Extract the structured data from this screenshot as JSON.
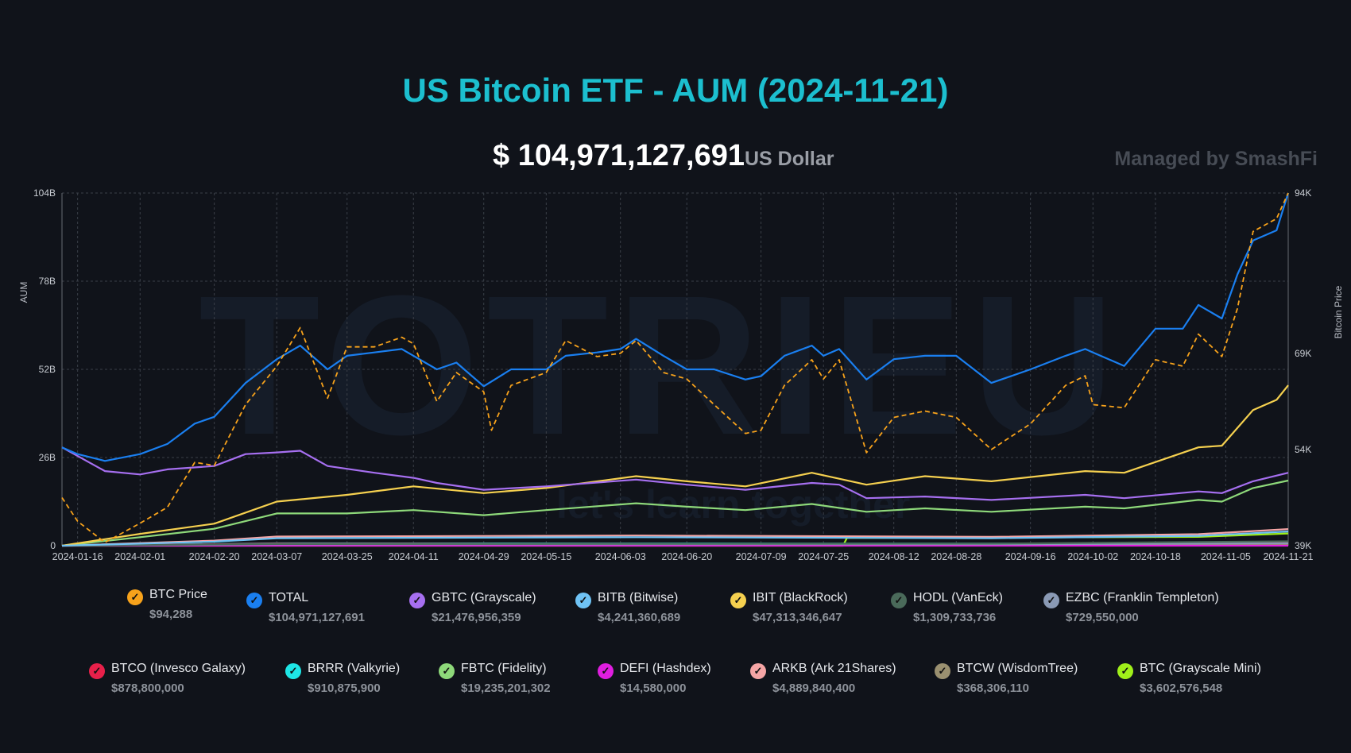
{
  "header": {
    "title": "US Bitcoin ETF - AUM (2024-11-21)",
    "total_value": "$ 104,971,127,691",
    "total_unit": "US Dollar",
    "managed_by": "Managed by SmashFi"
  },
  "watermark": {
    "text": "TOTRIEU",
    "tagline": "let's learn together"
  },
  "chart_data": {
    "type": "line",
    "title": "US Bitcoin ETF - AUM (2024-11-21)",
    "ylabel": "AUM",
    "y2label": "Bitcoin Price",
    "ylim": [
      0,
      104
    ],
    "y_unit": "B",
    "y2lim": [
      39,
      94
    ],
    "y2_unit": "K",
    "xlim": [
      "2024-01-12",
      "2024-11-21"
    ],
    "grid": true,
    "legend_placement": "bottom",
    "y_ticks": [
      "0",
      "26B",
      "52B",
      "78B",
      "104B"
    ],
    "y_tick_values": [
      0,
      26,
      52,
      78,
      104
    ],
    "y2_ticks": [
      "39K",
      "54K",
      "69K",
      "94K"
    ],
    "y2_tick_values": [
      39,
      54,
      69,
      94
    ],
    "x_ticks": [
      "2024-01-16",
      "2024-02-01",
      "2024-02-20",
      "2024-03-07",
      "2024-03-25",
      "2024-04-11",
      "2024-04-29",
      "2024-05-15",
      "2024-06-03",
      "2024-06-20",
      "2024-07-09",
      "2024-07-25",
      "2024-08-12",
      "2024-08-28",
      "2024-09-16",
      "2024-10-02",
      "2024-10-18",
      "2024-11-05",
      "2024-11-21"
    ],
    "series": [
      {
        "name": "BTC Price",
        "value": "$94,288",
        "color": "#f7a21b",
        "axis": "right",
        "dashed": true,
        "x": [
          "2024-01-12",
          "2024-01-16",
          "2024-01-23",
          "2024-02-01",
          "2024-02-08",
          "2024-02-15",
          "2024-02-20",
          "2024-02-28",
          "2024-03-07",
          "2024-03-13",
          "2024-03-20",
          "2024-03-25",
          "2024-04-01",
          "2024-04-08",
          "2024-04-11",
          "2024-04-17",
          "2024-04-22",
          "2024-04-29",
          "2024-05-01",
          "2024-05-06",
          "2024-05-15",
          "2024-05-20",
          "2024-05-28",
          "2024-06-03",
          "2024-06-07",
          "2024-06-14",
          "2024-06-20",
          "2024-06-27",
          "2024-07-05",
          "2024-07-09",
          "2024-07-15",
          "2024-07-22",
          "2024-07-25",
          "2024-07-29",
          "2024-08-05",
          "2024-08-12",
          "2024-08-20",
          "2024-08-28",
          "2024-09-06",
          "2024-09-16",
          "2024-09-25",
          "2024-09-30",
          "2024-10-02",
          "2024-10-10",
          "2024-10-18",
          "2024-10-25",
          "2024-10-29",
          "2024-11-04",
          "2024-11-08",
          "2024-11-12",
          "2024-11-18",
          "2024-11-21"
        ],
        "values": [
          46.5,
          42.8,
          39.5,
          42.5,
          45,
          52,
          51.5,
          61,
          67,
          73,
          62,
          70,
          70,
          71.5,
          70.5,
          61.5,
          66,
          63,
          57,
          64,
          66,
          71,
          68.5,
          69,
          71,
          66,
          65,
          61,
          56.5,
          57,
          64,
          68,
          65,
          68,
          53.5,
          59,
          60,
          59,
          54,
          58,
          64,
          65.5,
          61,
          60.5,
          68,
          67,
          72,
          68.5,
          76,
          88,
          90,
          94.3
        ]
      },
      {
        "name": "TOTAL",
        "value": "$104,971,127,691",
        "color": "#1a7ff0",
        "axis": "left",
        "x": [
          "2024-01-12",
          "2024-01-16",
          "2024-01-23",
          "2024-02-01",
          "2024-02-08",
          "2024-02-15",
          "2024-02-20",
          "2024-02-28",
          "2024-03-07",
          "2024-03-13",
          "2024-03-20",
          "2024-03-25",
          "2024-04-01",
          "2024-04-08",
          "2024-04-11",
          "2024-04-17",
          "2024-04-22",
          "2024-04-29",
          "2024-05-06",
          "2024-05-15",
          "2024-05-20",
          "2024-05-28",
          "2024-06-03",
          "2024-06-07",
          "2024-06-14",
          "2024-06-20",
          "2024-06-27",
          "2024-07-05",
          "2024-07-09",
          "2024-07-15",
          "2024-07-22",
          "2024-07-25",
          "2024-07-29",
          "2024-08-05",
          "2024-08-12",
          "2024-08-20",
          "2024-08-28",
          "2024-09-06",
          "2024-09-16",
          "2024-09-25",
          "2024-09-30",
          "2024-10-02",
          "2024-10-10",
          "2024-10-18",
          "2024-10-25",
          "2024-10-29",
          "2024-11-04",
          "2024-11-08",
          "2024-11-12",
          "2024-11-18",
          "2024-11-21"
        ],
        "values": [
          29,
          27,
          25,
          27,
          30,
          36,
          38,
          48,
          55,
          59,
          52,
          56,
          57,
          58,
          56,
          52,
          54,
          47,
          52,
          52,
          56,
          57,
          58,
          61,
          56,
          52,
          52,
          49,
          50,
          56,
          59,
          56,
          58,
          49,
          55,
          56,
          56,
          48,
          52,
          56,
          58,
          57,
          53,
          64,
          64,
          71,
          67,
          80,
          90,
          93,
          105
        ]
      },
      {
        "name": "GBTC (Grayscale)",
        "value": "$21,476,956,359",
        "color": "#a66ff0",
        "axis": "left",
        "x": [
          "2024-01-12",
          "2024-01-23",
          "2024-02-01",
          "2024-02-08",
          "2024-02-20",
          "2024-02-28",
          "2024-03-07",
          "2024-03-13",
          "2024-03-20",
          "2024-04-01",
          "2024-04-11",
          "2024-04-17",
          "2024-04-29",
          "2024-05-15",
          "2024-06-07",
          "2024-06-20",
          "2024-07-05",
          "2024-07-22",
          "2024-07-29",
          "2024-08-05",
          "2024-08-20",
          "2024-09-06",
          "2024-09-30",
          "2024-10-10",
          "2024-10-29",
          "2024-11-04",
          "2024-11-12",
          "2024-11-21"
        ],
        "values": [
          29,
          22,
          21,
          22.5,
          23.5,
          27,
          27.5,
          28,
          23.5,
          21.5,
          20,
          18.5,
          16.5,
          17.5,
          19.5,
          18,
          16.5,
          18.5,
          18,
          14,
          14.5,
          13.5,
          15,
          14,
          16,
          15.5,
          19,
          21.5
        ]
      },
      {
        "name": "BITB (Bitwise)",
        "value": "$4,241,360,689",
        "color": "#6fc3f5",
        "axis": "left",
        "x": [
          "2024-01-12",
          "2024-02-20",
          "2024-03-07",
          "2024-06-07",
          "2024-09-06",
          "2024-10-29",
          "2024-11-21"
        ],
        "values": [
          0,
          1.2,
          2.2,
          2.5,
          2.2,
          2.9,
          4.2
        ]
      },
      {
        "name": "IBIT (BlackRock)",
        "value": "$47,313,346,647",
        "color": "#f5d04f",
        "axis": "left",
        "x": [
          "2024-01-12",
          "2024-02-01",
          "2024-02-20",
          "2024-03-07",
          "2024-03-25",
          "2024-04-11",
          "2024-04-29",
          "2024-05-15",
          "2024-06-07",
          "2024-06-20",
          "2024-07-05",
          "2024-07-22",
          "2024-08-05",
          "2024-08-20",
          "2024-09-06",
          "2024-09-30",
          "2024-10-10",
          "2024-10-29",
          "2024-11-04",
          "2024-11-12",
          "2024-11-18",
          "2024-11-21"
        ],
        "values": [
          0,
          3.5,
          6.5,
          13,
          15,
          17.5,
          15.5,
          17,
          20.5,
          19,
          17.5,
          21.5,
          18,
          20.5,
          19,
          22,
          21.5,
          29,
          29.5,
          40,
          43,
          47.3
        ]
      },
      {
        "name": "HODL (VanEck)",
        "value": "$1,309,733,736",
        "color": "#4a6a5a",
        "axis": "left",
        "x": [
          "2024-01-12",
          "2024-03-07",
          "2024-09-06",
          "2024-11-21"
        ],
        "values": [
          0,
          0.5,
          0.6,
          1.3
        ]
      },
      {
        "name": "EZBC (Franklin Templeton)",
        "value": "$729,550,000",
        "color": "#8a9ab5",
        "axis": "left",
        "x": [
          "2024-01-12",
          "2024-03-07",
          "2024-09-06",
          "2024-11-21"
        ],
        "values": [
          0,
          0.4,
          0.4,
          0.73
        ]
      },
      {
        "name": "BTCO (Invesco Galaxy)",
        "value": "$878,800,000",
        "color": "#e8204a",
        "axis": "left",
        "x": [
          "2024-01-12",
          "2024-03-07",
          "2024-09-06",
          "2024-11-21"
        ],
        "values": [
          0,
          0.6,
          0.5,
          0.88
        ]
      },
      {
        "name": "BRRR (Valkyrie)",
        "value": "$910,875,900",
        "color": "#1ee6e6",
        "axis": "left",
        "x": [
          "2024-01-12",
          "2024-03-07",
          "2024-09-06",
          "2024-11-21"
        ],
        "values": [
          0,
          0.7,
          0.6,
          0.91
        ]
      },
      {
        "name": "FBTC (Fidelity)",
        "value": "$19,235,201,302",
        "color": "#8ed97a",
        "axis": "left",
        "x": [
          "2024-01-12",
          "2024-02-01",
          "2024-02-20",
          "2024-03-07",
          "2024-03-25",
          "2024-04-11",
          "2024-04-29",
          "2024-05-15",
          "2024-06-07",
          "2024-06-20",
          "2024-07-05",
          "2024-07-22",
          "2024-08-05",
          "2024-08-20",
          "2024-09-06",
          "2024-09-30",
          "2024-10-10",
          "2024-10-29",
          "2024-11-04",
          "2024-11-12",
          "2024-11-21"
        ],
        "values": [
          0,
          2.5,
          5,
          9.5,
          9.5,
          10.5,
          9,
          10.5,
          12.5,
          11.5,
          10.5,
          12.3,
          10,
          11,
          10,
          11.5,
          11,
          13.5,
          13,
          17,
          19.2
        ]
      },
      {
        "name": "DEFI (Hashdex)",
        "value": "$14,580,000",
        "color": "#e01ee0",
        "axis": "left",
        "x": [
          "2024-01-12",
          "2024-11-21"
        ],
        "values": [
          0.01,
          0.01
        ]
      },
      {
        "name": "ARKB (Ark 21Shares)",
        "value": "$4,889,840,400",
        "color": "#f5a5a5",
        "axis": "left",
        "x": [
          "2024-01-12",
          "2024-02-20",
          "2024-03-07",
          "2024-06-07",
          "2024-09-06",
          "2024-10-29",
          "2024-11-21"
        ],
        "values": [
          0,
          1.5,
          2.7,
          3,
          2.6,
          3.4,
          4.9
        ]
      },
      {
        "name": "BTCW (WisdomTree)",
        "value": "$368,306,110",
        "color": "#9a9070",
        "axis": "left",
        "x": [
          "2024-01-12",
          "2024-03-07",
          "2024-11-21"
        ],
        "values": [
          0,
          0.2,
          0.37
        ]
      },
      {
        "name": "BTC (Grayscale Mini)",
        "value": "$3,602,576,548",
        "color": "#a0f01a",
        "axis": "left",
        "x": [
          "2024-01-12",
          "2024-07-30",
          "2024-07-31",
          "2024-10-29",
          "2024-11-21"
        ],
        "values": [
          0,
          0,
          2.3,
          2.6,
          3.6
        ]
      }
    ]
  }
}
